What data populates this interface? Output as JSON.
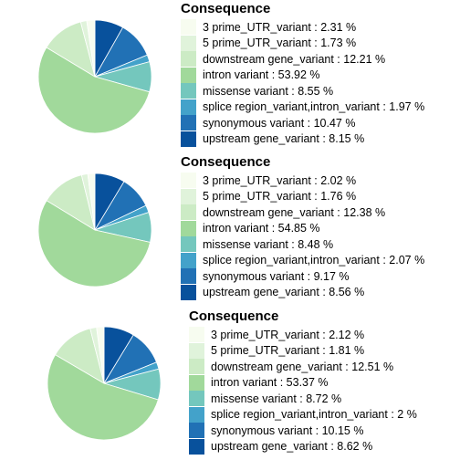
{
  "chart_data": [
    {
      "type": "pie",
      "legend_title": "Consequence",
      "legend_labels": [
        "3 prime_UTR_variant : 2.31 %",
        "5 prime_UTR_variant : 1.73 %",
        "downstream gene_variant : 12.21 %",
        "intron variant : 53.92 %",
        "missense variant : 8.55 %",
        "splice region_variant,intron_variant : 1.97 %",
        "synonymous variant : 10.47 %",
        "upstream gene_variant : 8.15 %"
      ],
      "values": [
        2.31,
        1.73,
        12.21,
        53.92,
        8.55,
        1.97,
        10.47,
        8.15
      ],
      "legend_position": "right"
    },
    {
      "type": "pie",
      "legend_title": "Consequence",
      "legend_labels": [
        "3 prime_UTR_variant : 2.02 %",
        "5 prime_UTR_variant : 1.76 %",
        "downstream gene_variant : 12.38 %",
        "intron variant : 54.85 %",
        "missense variant : 8.48 %",
        "splice region_variant,intron_variant : 2.07 %",
        "synonymous variant : 9.17 %",
        "upstream gene_variant : 8.56 %"
      ],
      "values": [
        2.02,
        1.76,
        12.38,
        54.85,
        8.48,
        2.07,
        9.17,
        8.56
      ],
      "legend_position": "right"
    },
    {
      "type": "pie",
      "legend_title": "Consequence",
      "legend_labels": [
        "3 prime_UTR_variant : 2.12 %",
        "5 prime_UTR_variant : 1.81 %",
        "downstream gene_variant : 12.51 %",
        "intron variant : 53.37 %",
        "missense variant : 8.72 %",
        "splice region_variant,intron_variant : 2 %",
        "synonymous variant : 10.15 %",
        "upstream gene_variant : 8.62 %"
      ],
      "values": [
        2.12,
        1.81,
        12.51,
        53.37,
        8.72,
        2.0,
        10.15,
        8.62
      ],
      "legend_position": "right"
    }
  ],
  "colors": [
    "#f7fcf0",
    "#e0f3db",
    "#ccebc5",
    "#a8ddb5",
    "#7bccc4",
    "#4eb3d3",
    "#2b8cbe",
    "#08589e"
  ],
  "slice_colors": [
    "#f7fcf0",
    "#e0f3db",
    "#ccebc5",
    "#a1d99b",
    "#74c7bd",
    "#43a2ca",
    "#2171b5",
    "#08519c"
  ]
}
